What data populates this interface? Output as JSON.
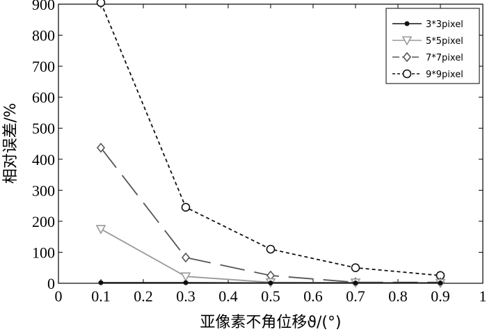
{
  "chart_data": {
    "type": "line",
    "xlabel": "亚像素不角位移ϑ/(°)",
    "ylabel": "相对误差/%",
    "xlim": [
      0,
      1
    ],
    "ylim": [
      0,
      900
    ],
    "xticks": [
      "0",
      "0.1",
      "0.2",
      "0.3",
      "0.4",
      "0.5",
      "0.6",
      "0.7",
      "0.8",
      "0.9",
      "1"
    ],
    "yticks": [
      "0",
      "100",
      "200",
      "300",
      "400",
      "500",
      "600",
      "700",
      "800",
      "900"
    ],
    "grid": false,
    "legend_position": "top-right",
    "x": [
      0.1,
      0.3,
      0.5,
      0.7,
      0.9
    ],
    "series": [
      {
        "name": "3*3pixel",
        "values": [
          2,
          2,
          1,
          1,
          1
        ],
        "color": "#111111",
        "marker": "dot",
        "dash": "solid"
      },
      {
        "name": "5*5pixel",
        "values": [
          175,
          22,
          3,
          2,
          1
        ],
        "color": "#9a9a9a",
        "marker": "triangle-down",
        "dash": "solid"
      },
      {
        "name": "7*7pixel",
        "values": [
          437,
          83,
          25,
          3,
          3
        ],
        "color": "#555555",
        "marker": "diamond",
        "dash": "long-dash"
      },
      {
        "name": "9*9pixel",
        "values": [
          905,
          245,
          110,
          50,
          25
        ],
        "color": "#111111",
        "marker": "circle",
        "dash": "dashed"
      }
    ]
  }
}
